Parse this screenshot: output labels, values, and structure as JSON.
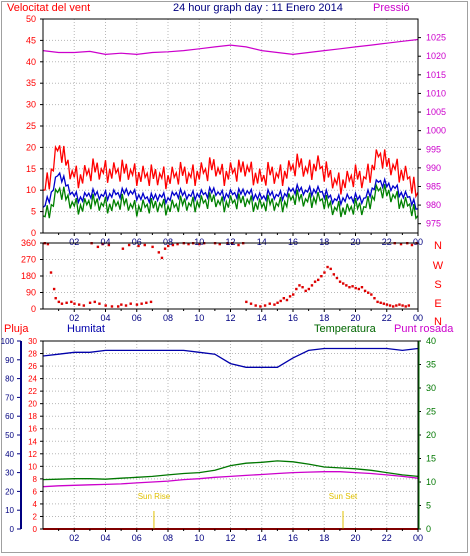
{
  "header": {
    "wind_label": "Velocitat del vent",
    "title": "24 hour graph day : 11 Enero 2014",
    "pressure_label": "Pressió"
  },
  "colors": {
    "wind_gust": "#ff0000",
    "wind_avg": "#008000",
    "wind_speed": "#0000cc",
    "pressure": "#cc00cc",
    "direction": "#dd0000",
    "humidity": "#0000aa",
    "temperature": "#007700",
    "dewpoint": "#cc00cc",
    "rain": "#ff0000",
    "sun": "#e0c000",
    "grid": "#b8b8b8"
  },
  "lower_header": {
    "rain_label": "Pluja",
    "humidity_label": "Humitat",
    "temperature_label": "Temperatura",
    "dewpoint_label": "Punt rosada"
  },
  "sun_events": {
    "sunrise_label": "Sun Rise",
    "sunset_label": "Sun Set",
    "sunrise_time": 7.1,
    "sunset_time": 19.2
  },
  "x_ticks": [
    "02",
    "04",
    "06",
    "08",
    "10",
    "12",
    "14",
    "16",
    "18",
    "20",
    "22",
    "00"
  ],
  "chart_data": [
    {
      "type": "line",
      "panel": "wind_pressure",
      "x_range": [
        0,
        24
      ],
      "y_left": {
        "ticks": [
          0,
          5,
          10,
          15,
          20,
          25,
          30,
          35,
          40,
          45,
          50
        ],
        "ylim": [
          0,
          50
        ]
      },
      "y_right": {
        "ticks": [
          975,
          980,
          985,
          990,
          995,
          1000,
          1005,
          1010,
          1015,
          1020,
          1025
        ],
        "ylim": [
          972.5,
          1030
        ]
      },
      "series": [
        {
          "key": "gust",
          "axis": "left",
          "x": [
            0,
            0.5,
            1,
            1.5,
            2,
            2.5,
            3,
            3.5,
            4,
            4.5,
            5,
            5.5,
            6,
            6.5,
            7,
            7.5,
            8,
            8.5,
            9,
            9.5,
            10,
            10.5,
            11,
            11.5,
            12,
            12.5,
            13,
            13.5,
            14,
            14.5,
            15,
            15.5,
            16,
            16.5,
            17,
            17.5,
            18,
            18.5,
            19,
            19.5,
            20,
            20.5,
            21,
            21.5,
            22,
            22.5,
            23,
            23.5,
            24
          ],
          "y": [
            10,
            14,
            20,
            16,
            14,
            13,
            14,
            15,
            15,
            14,
            14,
            15,
            14,
            13,
            13,
            14,
            13,
            13,
            14,
            14,
            14,
            14,
            16,
            14,
            14,
            14,
            16,
            14,
            12,
            14,
            14,
            14,
            15,
            16,
            15,
            16,
            14,
            13,
            12,
            12,
            13,
            13,
            15,
            18,
            16,
            16,
            14,
            12,
            8
          ]
        },
        {
          "key": "speed",
          "axis": "left",
          "x": [
            0,
            0.5,
            1,
            1.5,
            2,
            2.5,
            3,
            3.5,
            4,
            4.5,
            5,
            5.5,
            6,
            6.5,
            7,
            7.5,
            8,
            8.5,
            9,
            9.5,
            10,
            10.5,
            11,
            11.5,
            12,
            12.5,
            13,
            13.5,
            14,
            14.5,
            15,
            15.5,
            16,
            16.5,
            17,
            17.5,
            18,
            18.5,
            19,
            19.5,
            20,
            20.5,
            21,
            21.5,
            22,
            22.5,
            23,
            23.5,
            24
          ],
          "y": [
            6,
            9,
            14,
            11,
            9,
            8,
            9,
            9,
            9,
            9,
            9,
            10,
            9,
            8,
            8,
            9,
            8,
            9,
            9,
            9,
            9,
            9,
            10,
            9,
            9,
            9,
            10,
            9,
            8,
            9,
            9,
            9,
            10,
            10,
            10,
            10,
            9,
            8,
            8,
            8,
            8,
            8,
            10,
            12,
            11,
            11,
            9,
            8,
            5
          ]
        },
        {
          "key": "avg",
          "axis": "left",
          "x": [
            0,
            0.5,
            1,
            1.5,
            2,
            2.5,
            3,
            3.5,
            4,
            4.5,
            5,
            5.5,
            6,
            6.5,
            7,
            7.5,
            8,
            8.5,
            9,
            9.5,
            10,
            10.5,
            11,
            11.5,
            12,
            12.5,
            13,
            13.5,
            14,
            14.5,
            15,
            15.5,
            16,
            16.5,
            17,
            17.5,
            18,
            18.5,
            19,
            19.5,
            20,
            20.5,
            21,
            21.5,
            22,
            22.5,
            23,
            23.5,
            24
          ],
          "y": [
            4,
            6,
            10,
            8,
            7,
            6,
            7,
            7,
            7,
            6,
            7,
            7,
            6,
            6,
            6,
            7,
            6,
            6,
            7,
            7,
            7,
            7,
            8,
            7,
            7,
            7,
            8,
            7,
            6,
            7,
            7,
            7,
            8,
            8,
            8,
            8,
            7,
            6,
            6,
            5,
            6,
            6,
            8,
            10,
            9,
            9,
            7,
            6,
            3
          ]
        },
        {
          "key": "pressure",
          "axis": "right",
          "x": [
            0,
            1,
            2,
            3,
            4,
            5,
            6,
            7,
            8,
            9,
            10,
            11,
            12,
            13,
            14,
            15,
            16,
            17,
            18,
            19,
            20,
            21,
            22,
            23,
            24
          ],
          "y": [
            1021.5,
            1021,
            1021,
            1021.3,
            1020.5,
            1020.8,
            1020.5,
            1021,
            1021.2,
            1021.5,
            1022,
            1022.5,
            1023,
            1022.5,
            1021.5,
            1021,
            1020.5,
            1021,
            1021.5,
            1022,
            1022.5,
            1023,
            1023.5,
            1024,
            1024.5
          ]
        }
      ]
    },
    {
      "type": "scatter",
      "panel": "wind_direction",
      "x_range": [
        0,
        24
      ],
      "y_ticks": [
        0,
        90,
        180,
        270,
        360
      ],
      "ylim": [
        0,
        360
      ],
      "compass_labels": [
        "N",
        "W",
        "S",
        "E",
        "N"
      ],
      "points": [
        [
          0.1,
          360
        ],
        [
          0.3,
          355
        ],
        [
          0.5,
          200
        ],
        [
          0.7,
          110
        ],
        [
          0.8,
          60
        ],
        [
          1,
          40
        ],
        [
          1.2,
          30
        ],
        [
          1.5,
          35
        ],
        [
          1.8,
          40
        ],
        [
          2,
          30
        ],
        [
          2.3,
          25
        ],
        [
          2.6,
          20
        ],
        [
          3,
          35
        ],
        [
          3.3,
          40
        ],
        [
          3.6,
          30
        ],
        [
          4,
          20
        ],
        [
          4.4,
          15
        ],
        [
          4.8,
          15
        ],
        [
          5,
          25
        ],
        [
          5.3,
          20
        ],
        [
          5.6,
          30
        ],
        [
          6,
          25
        ],
        [
          6.3,
          30
        ],
        [
          6.6,
          35
        ],
        [
          6.9,
          40
        ],
        [
          3.1,
          360
        ],
        [
          3.5,
          340
        ],
        [
          3.8,
          355
        ],
        [
          4.2,
          350
        ],
        [
          5.1,
          330
        ],
        [
          5.5,
          350
        ],
        [
          6.1,
          345
        ],
        [
          6.5,
          350
        ],
        [
          7,
          340
        ],
        [
          7.4,
          310
        ],
        [
          7.6,
          280
        ],
        [
          7.8,
          330
        ],
        [
          8,
          345
        ],
        [
          8.3,
          350
        ],
        [
          8.6,
          355
        ],
        [
          9,
          360
        ],
        [
          9.3,
          355
        ],
        [
          9.6,
          360
        ],
        [
          10,
          355
        ],
        [
          10.3,
          360
        ],
        [
          11,
          360
        ],
        [
          11.3,
          355
        ],
        [
          12.1,
          360
        ],
        [
          12.5,
          350
        ],
        [
          13,
          40
        ],
        [
          13.3,
          30
        ],
        [
          13.6,
          20
        ],
        [
          13.9,
          15
        ],
        [
          14.2,
          20
        ],
        [
          14.5,
          30
        ],
        [
          14.8,
          25
        ],
        [
          15,
          35
        ],
        [
          15.2,
          45
        ],
        [
          15.4,
          60
        ],
        [
          15.6,
          50
        ],
        [
          15.8,
          70
        ],
        [
          16,
          80
        ],
        [
          16.2,
          110
        ],
        [
          16.4,
          130
        ],
        [
          16.6,
          120
        ],
        [
          16.8,
          100
        ],
        [
          17,
          110
        ],
        [
          17.2,
          130
        ],
        [
          17.4,
          150
        ],
        [
          17.6,
          160
        ],
        [
          17.8,
          180
        ],
        [
          18,
          200
        ],
        [
          18.2,
          230
        ],
        [
          18.4,
          220
        ],
        [
          18.6,
          190
        ],
        [
          18.8,
          170
        ],
        [
          19,
          150
        ],
        [
          19.2,
          140
        ],
        [
          19.4,
          130
        ],
        [
          19.6,
          120
        ],
        [
          19.8,
          125
        ],
        [
          20,
          115
        ],
        [
          20.2,
          110
        ],
        [
          20.4,
          120
        ],
        [
          20.6,
          100
        ],
        [
          20.8,
          90
        ],
        [
          21,
          80
        ],
        [
          21.2,
          60
        ],
        [
          21.4,
          40
        ],
        [
          21.6,
          35
        ],
        [
          21.8,
          30
        ],
        [
          22,
          25
        ],
        [
          22.2,
          20
        ],
        [
          22.4,
          15
        ],
        [
          22.6,
          20
        ],
        [
          22.8,
          25
        ],
        [
          23,
          20
        ],
        [
          23.2,
          15
        ],
        [
          23.4,
          20
        ],
        [
          22.5,
          360
        ],
        [
          22.9,
          355
        ],
        [
          23.3,
          360
        ],
        [
          23.6,
          350
        ],
        [
          23.9,
          360
        ],
        [
          11.8,
          360
        ],
        [
          12.8,
          360
        ]
      ]
    },
    {
      "type": "line",
      "panel": "humidity_temperature",
      "x_range": [
        0,
        24
      ],
      "y_left": {
        "ticks": [
          0,
          10,
          20,
          30,
          40,
          50,
          60,
          70,
          80,
          90,
          100
        ],
        "ylim": [
          0,
          100
        ]
      },
      "y_mid": {
        "ticks": [
          0,
          2,
          4,
          6,
          8,
          10,
          12,
          14,
          16,
          18,
          20,
          22,
          24,
          26,
          28,
          30
        ],
        "ylim": [
          0,
          30
        ]
      },
      "y_right": {
        "ticks": [
          0,
          5,
          10,
          15,
          20,
          25,
          30,
          35,
          40
        ],
        "ylim": [
          0,
          40
        ]
      },
      "series": [
        {
          "key": "humidity",
          "axis": "left",
          "x": [
            0,
            1,
            2,
            3,
            4,
            5,
            6,
            7,
            8,
            9,
            10,
            11,
            12,
            13,
            14,
            15,
            16,
            17,
            18,
            19,
            20,
            21,
            22,
            23,
            24
          ],
          "y": [
            92,
            93,
            94,
            94,
            95,
            95,
            95,
            95,
            95,
            95,
            94,
            93,
            88,
            86,
            86,
            86,
            91,
            95,
            96,
            96,
            96,
            96,
            96,
            95,
            96
          ]
        },
        {
          "key": "temperature",
          "axis": "right",
          "x": [
            0,
            1,
            2,
            3,
            4,
            5,
            6,
            7,
            8,
            9,
            10,
            11,
            12,
            13,
            14,
            15,
            16,
            17,
            18,
            19,
            20,
            21,
            22,
            23,
            24
          ],
          "y": [
            10.5,
            10.6,
            10.7,
            10.7,
            10.6,
            10.8,
            11,
            11.2,
            11.5,
            11.8,
            12,
            12.5,
            13.5,
            14,
            14.2,
            14.5,
            14.3,
            13.8,
            13.2,
            13,
            12.8,
            12.5,
            12,
            11.5,
            11.2
          ]
        },
        {
          "key": "dewpoint",
          "axis": "right",
          "x": [
            0,
            1,
            2,
            3,
            4,
            5,
            6,
            7,
            8,
            9,
            10,
            11,
            12,
            13,
            14,
            15,
            16,
            17,
            18,
            19,
            20,
            21,
            22,
            23,
            24
          ],
          "y": [
            9,
            9.2,
            9.3,
            9.4,
            9.5,
            9.6,
            9.8,
            10,
            10.2,
            10.5,
            10.7,
            11,
            11.2,
            11.4,
            11.6,
            11.8,
            12,
            12.1,
            12.2,
            12.2,
            12,
            11.8,
            11.5,
            11.2,
            10.8
          ]
        },
        {
          "key": "rain",
          "axis": "mid",
          "x": [
            0,
            24
          ],
          "y": [
            0,
            0
          ]
        }
      ]
    }
  ]
}
